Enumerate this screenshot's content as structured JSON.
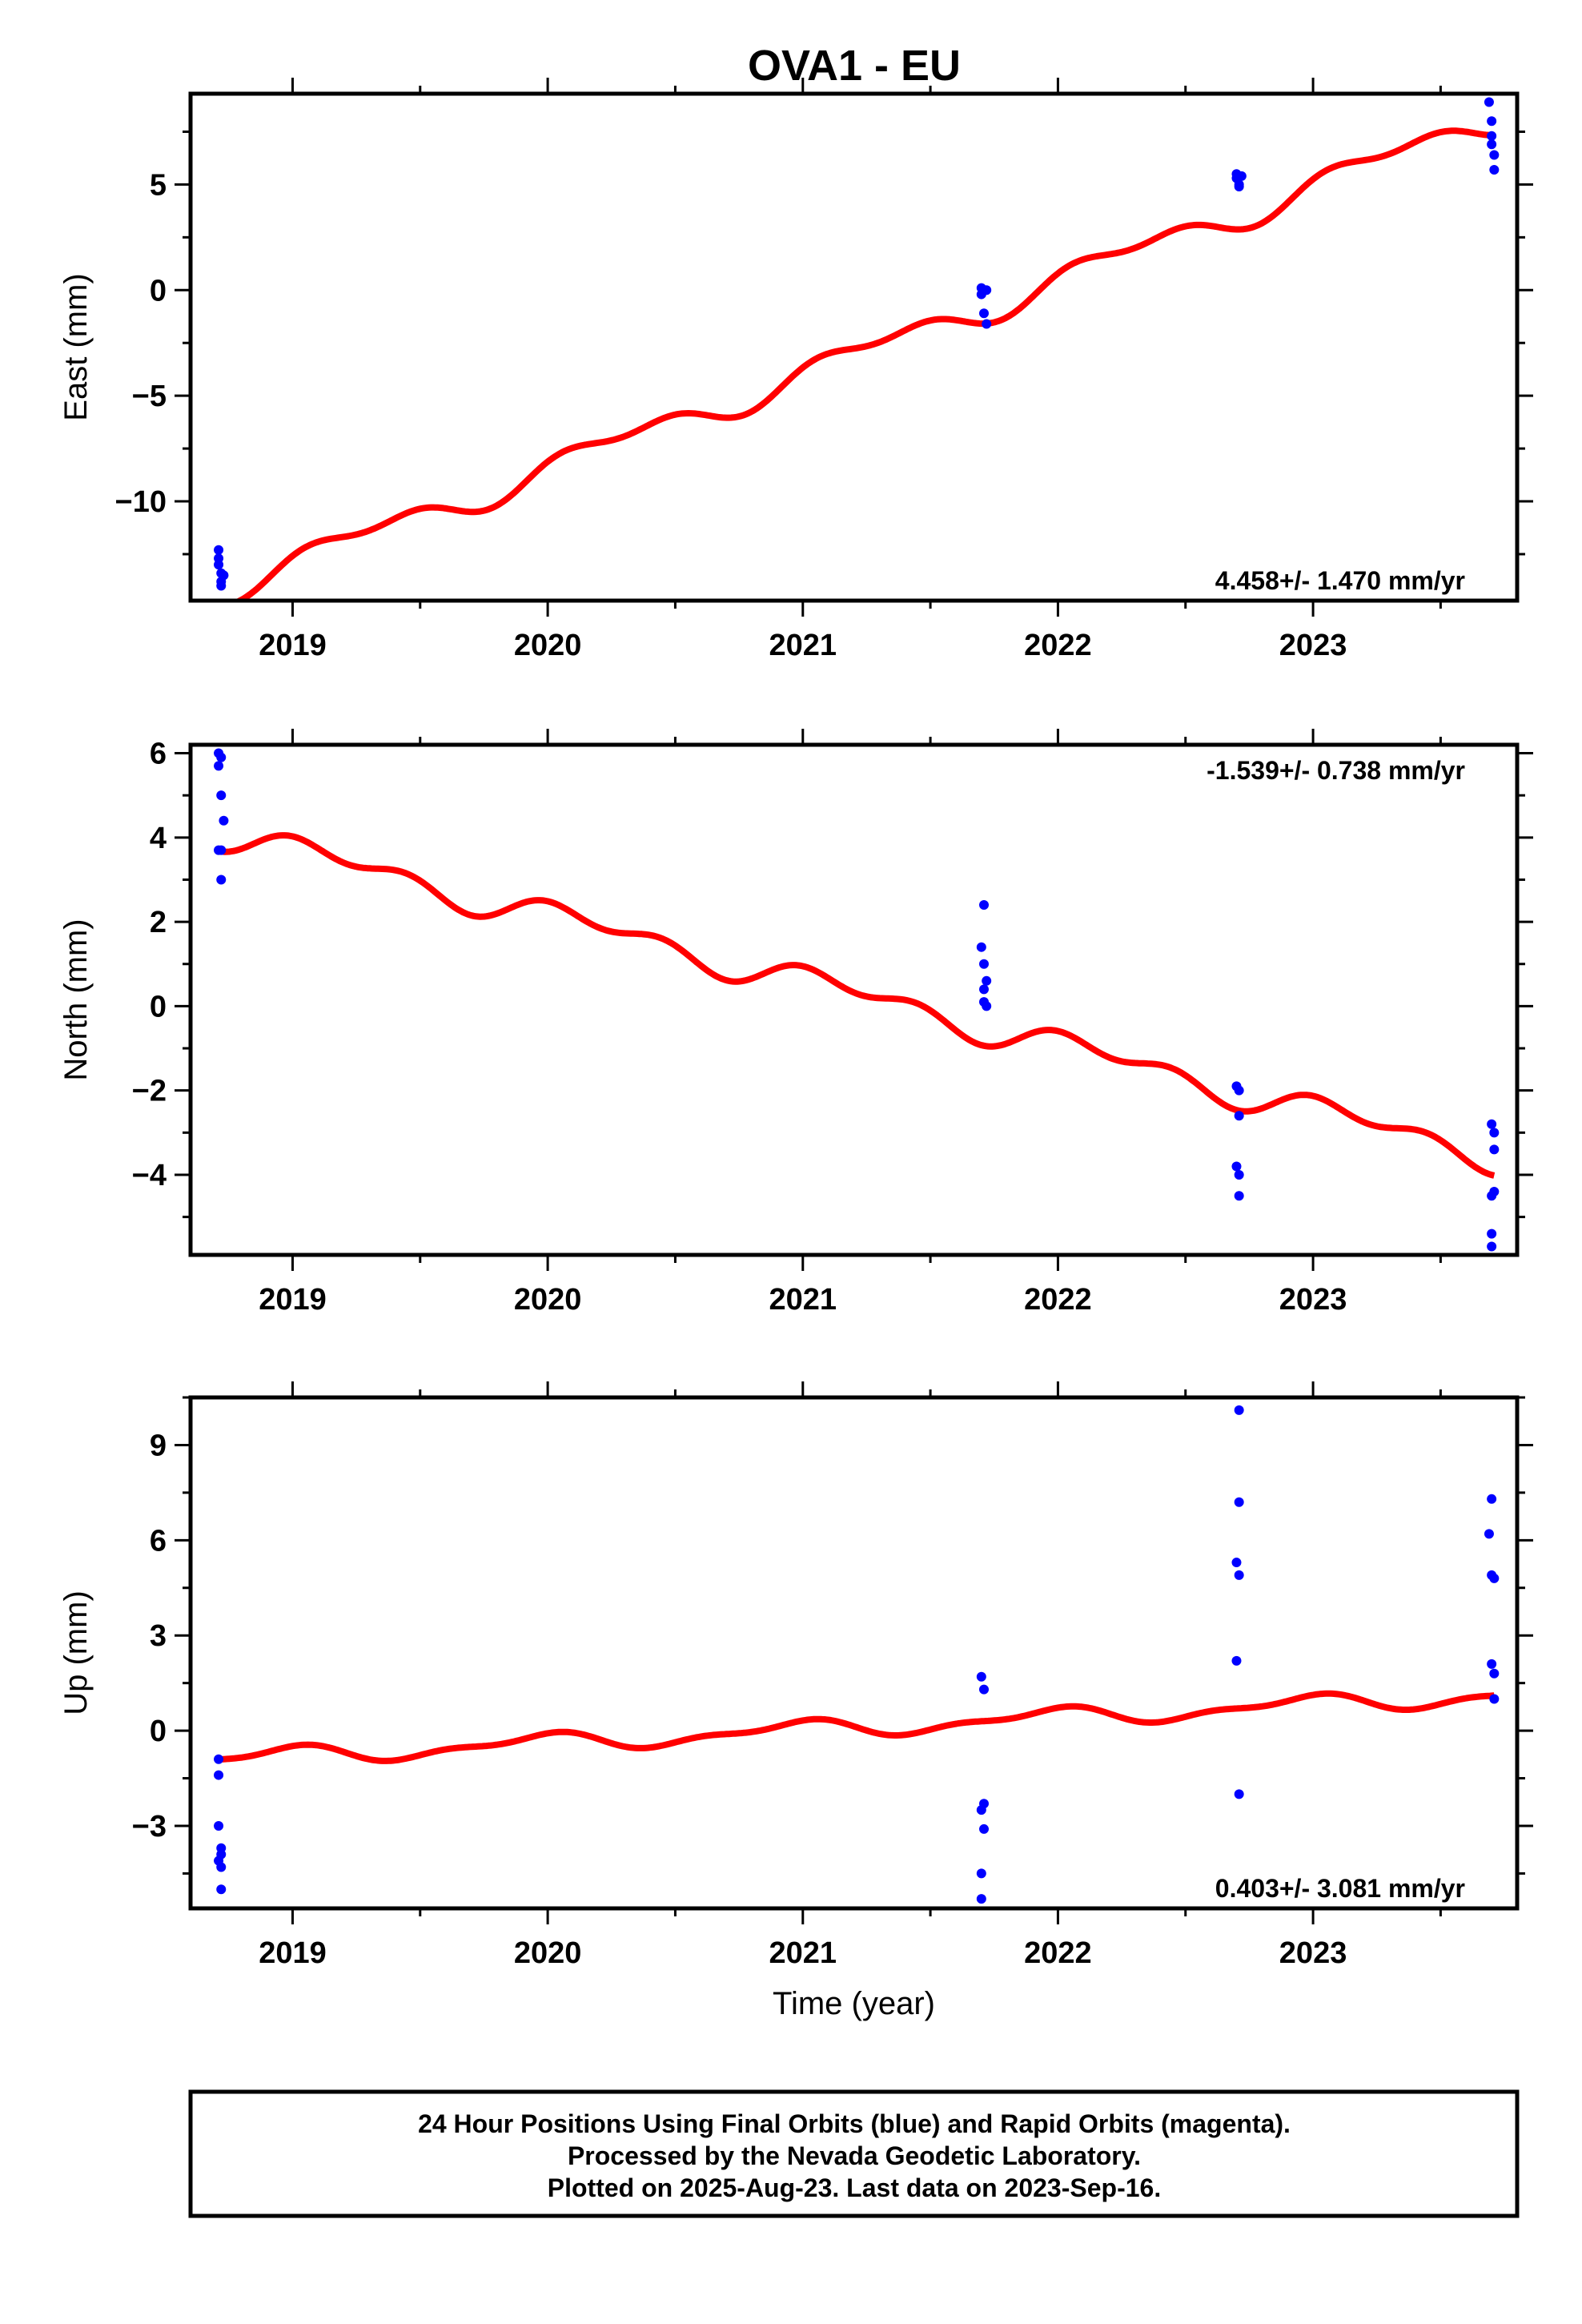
{
  "title": "OVA1 - EU",
  "colors": {
    "data_points": "#0000ff",
    "model_fit": "#ff0000",
    "frame": "#000000"
  },
  "footer": {
    "line1": "24 Hour Positions Using Final Orbits (blue) and Rapid Orbits (magenta).",
    "line2": "Processed by the Nevada Geodetic Laboratory.",
    "line3": "Plotted on 2025-Aug-23. Last data on 2023-Sep-16."
  },
  "chart_data": [
    {
      "type": "scatter",
      "component": "east",
      "ylabel": "East (mm)",
      "xlabel": "",
      "xlim": [
        2018.6,
        2023.8
      ],
      "ylim": [
        -14.7,
        9.3
      ],
      "x_ticks": [
        2019,
        2020,
        2021,
        2022,
        2023
      ],
      "x_tick_labels": [
        "2019",
        "2020",
        "2021",
        "2022",
        "2023"
      ],
      "y_ticks": [
        -10,
        -5,
        0,
        5
      ],
      "y_tick_labels": [
        "−10",
        "−5",
        "0",
        "5"
      ],
      "rate_label": "4.458+/- 1.470 mm/yr",
      "rate_label_position": "bottom-right",
      "model": {
        "mean": -3.1,
        "trend": 4.458,
        "t0": 2021.2,
        "seasonal": [
          {
            "period": 1.0,
            "amp": 0.55,
            "phase": 0.0
          },
          {
            "period": 0.5,
            "amp": 0.35,
            "phase": 1.2
          }
        ]
      },
      "points": [
        {
          "x": 2018.71,
          "y": -12.3
        },
        {
          "x": 2018.71,
          "y": -12.7
        },
        {
          "x": 2018.71,
          "y": -13.0
        },
        {
          "x": 2018.72,
          "y": -13.4
        },
        {
          "x": 2018.72,
          "y": -13.8
        },
        {
          "x": 2018.72,
          "y": -14.0
        },
        {
          "x": 2018.73,
          "y": -13.5
        },
        {
          "x": 2021.7,
          "y": 0.1
        },
        {
          "x": 2021.7,
          "y": -0.2
        },
        {
          "x": 2021.71,
          "y": -1.1
        },
        {
          "x": 2021.72,
          "y": -1.6
        },
        {
          "x": 2021.72,
          "y": 0.0
        },
        {
          "x": 2022.7,
          "y": 5.5
        },
        {
          "x": 2022.7,
          "y": 5.3
        },
        {
          "x": 2022.71,
          "y": 5.0
        },
        {
          "x": 2022.71,
          "y": 4.9
        },
        {
          "x": 2022.72,
          "y": 5.4
        },
        {
          "x": 2023.69,
          "y": 8.9
        },
        {
          "x": 2023.7,
          "y": 8.0
        },
        {
          "x": 2023.7,
          "y": 7.3
        },
        {
          "x": 2023.7,
          "y": 6.9
        },
        {
          "x": 2023.71,
          "y": 6.4
        },
        {
          "x": 2023.71,
          "y": 5.7
        }
      ]
    },
    {
      "type": "scatter",
      "component": "north",
      "ylabel": "North (mm)",
      "xlabel": "",
      "xlim": [
        2018.6,
        2023.8
      ],
      "ylim": [
        -5.9,
        6.2
      ],
      "x_ticks": [
        2019,
        2020,
        2021,
        2022,
        2023
      ],
      "x_tick_labels": [
        "2019",
        "2020",
        "2021",
        "2022",
        "2023"
      ],
      "y_ticks": [
        -4,
        -2,
        0,
        2,
        4,
        6
      ],
      "y_tick_labels": [
        "−4",
        "−2",
        "0",
        "2",
        "4",
        "6"
      ],
      "rate_label": "-1.539+/- 0.738 mm/yr",
      "rate_label_position": "top-right",
      "model": {
        "mean": 0.3,
        "trend": -1.539,
        "t0": 2021.2,
        "seasonal": [
          {
            "period": 1.0,
            "amp": 0.25,
            "phase": 0.6
          },
          {
            "period": 0.5,
            "amp": 0.22,
            "phase": 2.0
          }
        ]
      },
      "points": [
        {
          "x": 2018.71,
          "y": 6.0
        },
        {
          "x": 2018.72,
          "y": 5.9
        },
        {
          "x": 2018.71,
          "y": 5.7
        },
        {
          "x": 2018.72,
          "y": 5.0
        },
        {
          "x": 2018.73,
          "y": 4.4
        },
        {
          "x": 2018.72,
          "y": 3.7
        },
        {
          "x": 2018.71,
          "y": 3.7
        },
        {
          "x": 2018.72,
          "y": 3.0
        },
        {
          "x": 2021.71,
          "y": 2.4
        },
        {
          "x": 2021.7,
          "y": 1.4
        },
        {
          "x": 2021.71,
          "y": 1.0
        },
        {
          "x": 2021.72,
          "y": 0.6
        },
        {
          "x": 2021.71,
          "y": 0.4
        },
        {
          "x": 2021.71,
          "y": 0.1
        },
        {
          "x": 2021.72,
          "y": 0.0
        },
        {
          "x": 2022.7,
          "y": -1.9
        },
        {
          "x": 2022.71,
          "y": -2.0
        },
        {
          "x": 2022.71,
          "y": -2.6
        },
        {
          "x": 2022.7,
          "y": -3.8
        },
        {
          "x": 2022.71,
          "y": -4.0
        },
        {
          "x": 2022.71,
          "y": -4.5
        },
        {
          "x": 2023.7,
          "y": -2.8
        },
        {
          "x": 2023.71,
          "y": -3.0
        },
        {
          "x": 2023.71,
          "y": -3.4
        },
        {
          "x": 2023.7,
          "y": -4.5
        },
        {
          "x": 2023.71,
          "y": -4.4
        },
        {
          "x": 2023.7,
          "y": -5.4
        },
        {
          "x": 2023.7,
          "y": -5.7
        }
      ]
    },
    {
      "type": "scatter",
      "component": "up",
      "ylabel": "Up (mm)",
      "xlabel": "Time (year)",
      "xlim": [
        2018.6,
        2023.8
      ],
      "ylim": [
        -5.6,
        10.5
      ],
      "x_ticks": [
        2019,
        2020,
        2021,
        2022,
        2023
      ],
      "x_tick_labels": [
        "2019",
        "2020",
        "2021",
        "2022",
        "2023"
      ],
      "y_ticks": [
        -3,
        0,
        3,
        6,
        9
      ],
      "y_tick_labels": [
        "−3",
        "0",
        "3",
        "6",
        "9"
      ],
      "rate_label": "0.403+/- 3.081 mm/yr",
      "rate_label_position": "bottom-right",
      "model": {
        "mean": 0.1,
        "trend": 0.403,
        "t0": 2021.2,
        "seasonal": [
          {
            "period": 1.0,
            "amp": 0.25,
            "phase": 1.8
          },
          {
            "period": 0.5,
            "amp": 0.12,
            "phase": 0.5
          }
        ]
      },
      "points": [
        {
          "x": 2018.71,
          "y": -0.9
        },
        {
          "x": 2018.71,
          "y": -1.4
        },
        {
          "x": 2018.71,
          "y": -3.0
        },
        {
          "x": 2018.72,
          "y": -3.7
        },
        {
          "x": 2018.72,
          "y": -3.9
        },
        {
          "x": 2018.71,
          "y": -4.1
        },
        {
          "x": 2018.72,
          "y": -4.3
        },
        {
          "x": 2018.72,
          "y": -5.0
        },
        {
          "x": 2021.7,
          "y": 1.7
        },
        {
          "x": 2021.71,
          "y": 1.3
        },
        {
          "x": 2021.71,
          "y": -2.3
        },
        {
          "x": 2021.7,
          "y": -2.5
        },
        {
          "x": 2021.71,
          "y": -3.1
        },
        {
          "x": 2021.7,
          "y": -4.5
        },
        {
          "x": 2021.7,
          "y": -5.3
        },
        {
          "x": 2022.71,
          "y": 10.1
        },
        {
          "x": 2022.71,
          "y": 7.2
        },
        {
          "x": 2022.7,
          "y": 5.3
        },
        {
          "x": 2022.71,
          "y": 4.9
        },
        {
          "x": 2022.7,
          "y": 2.2
        },
        {
          "x": 2022.71,
          "y": -2.0
        },
        {
          "x": 2023.7,
          "y": 7.3
        },
        {
          "x": 2023.69,
          "y": 6.2
        },
        {
          "x": 2023.7,
          "y": 4.9
        },
        {
          "x": 2023.71,
          "y": 4.8
        },
        {
          "x": 2023.7,
          "y": 2.1
        },
        {
          "x": 2023.71,
          "y": 1.8
        },
        {
          "x": 2023.71,
          "y": 1.0
        }
      ]
    }
  ]
}
